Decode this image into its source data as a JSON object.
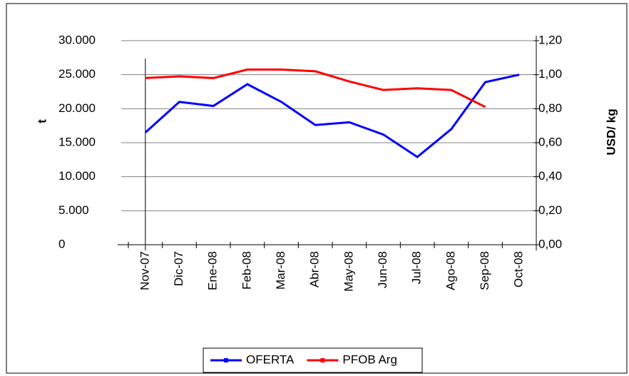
{
  "chart_data": {
    "type": "line",
    "y_label": "t",
    "y2_label": "USD/ kg",
    "categories": [
      "Nov-07",
      "Dic-07",
      "Ene-08",
      "Feb-08",
      "Mar-08",
      "Abr-08",
      "May-08",
      "Jun-08",
      "Jul-08",
      "Ago-08",
      "Sep-08",
      "Oct-08"
    ],
    "series": [
      {
        "name": "OFERTA",
        "color": "#0000ff",
        "values": [
          16500,
          21000,
          20400,
          23600,
          21000,
          17600,
          18000,
          16200,
          12900,
          17000,
          23900,
          25000
        ]
      },
      {
        "name": "PFOB Arg",
        "color": "#ff0000",
        "axis": "y2",
        "values": [
          0.98,
          0.99,
          0.98,
          1.03,
          1.03,
          1.02,
          0.96,
          0.91,
          0.92,
          0.91,
          0.81,
          null
        ]
      }
    ],
    "ylim": [
      0,
      30000
    ],
    "yticks": [
      0,
      {
        "value": 5000,
        "label": "5.000"
      },
      {
        "value": 10000,
        "label": "10.000"
      },
      {
        "value": 15000,
        "label": "15.000"
      },
      {
        "value": 20000,
        "label": "20.000"
      },
      {
        "value": 25000,
        "label": "25.000"
      },
      {
        "value": 30000,
        "label": "30.000"
      }
    ],
    "y2lim": [
      0,
      1.2
    ],
    "y2ticks": [
      {
        "value": 0,
        "label": "0,00"
      },
      {
        "value": 0.2,
        "label": "0,20"
      },
      {
        "value": 0.4,
        "label": "0,40"
      },
      {
        "value": 0.6,
        "label": "0,60"
      },
      {
        "value": 0.8,
        "label": "0,80"
      },
      {
        "value": 1.0,
        "label": "1,00"
      },
      {
        "value": 1.2,
        "label": "1,20"
      }
    ],
    "grid": true,
    "legend": "bottom"
  }
}
